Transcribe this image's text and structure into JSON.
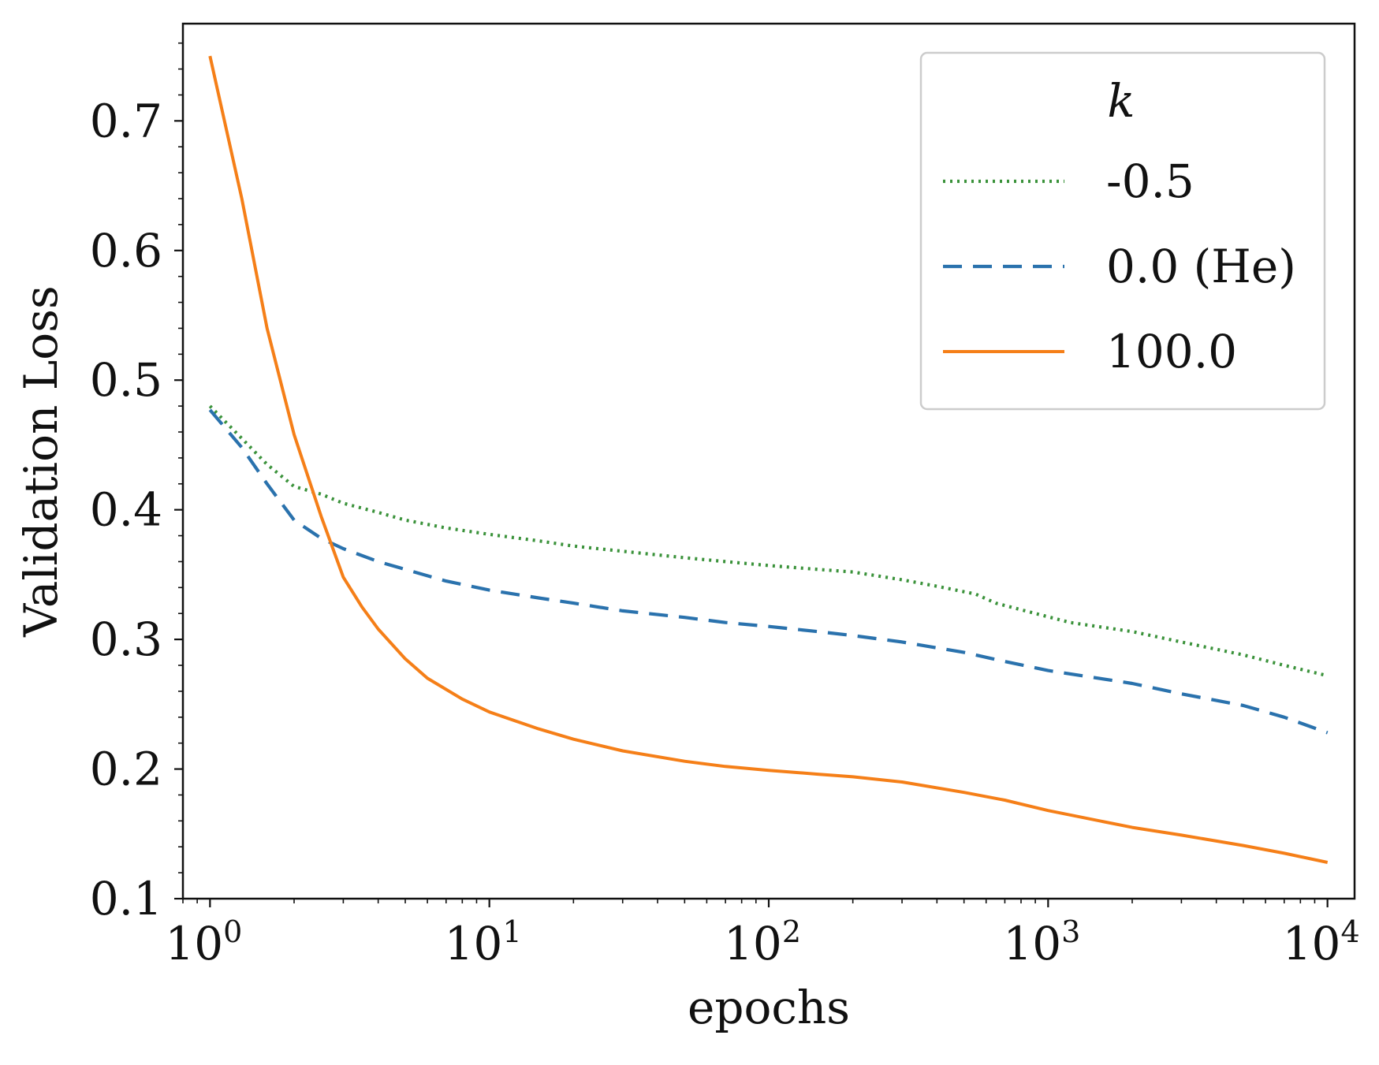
{
  "chart_data": {
    "type": "line",
    "title": "",
    "xlabel": "epochs",
    "ylabel": "Validation Loss",
    "xscale": "log",
    "xlim": [
      0.8,
      12500
    ],
    "ylim": [
      0.1,
      0.775
    ],
    "xticks": [
      {
        "value": 1,
        "base": "10",
        "exp": "0"
      },
      {
        "value": 10,
        "base": "10",
        "exp": "1"
      },
      {
        "value": 100,
        "base": "10",
        "exp": "2"
      },
      {
        "value": 1000,
        "base": "10",
        "exp": "3"
      },
      {
        "value": 10000,
        "base": "10",
        "exp": "4"
      }
    ],
    "yticks": [
      {
        "value": 0.1,
        "label": "0.1"
      },
      {
        "value": 0.2,
        "label": "0.2"
      },
      {
        "value": 0.3,
        "label": "0.3"
      },
      {
        "value": 0.4,
        "label": "0.4"
      },
      {
        "value": 0.5,
        "label": "0.5"
      },
      {
        "value": 0.6,
        "label": "0.6"
      },
      {
        "value": 0.7,
        "label": "0.7"
      }
    ],
    "grid": false,
    "legend": {
      "title": "k",
      "placement": "top-right"
    },
    "series": [
      {
        "name": "-0.5",
        "color": "#3a923a",
        "style": "dotted",
        "points": [
          [
            1,
            0.48
          ],
          [
            1.3,
            0.455
          ],
          [
            1.6,
            0.435
          ],
          [
            2,
            0.418
          ],
          [
            2.5,
            0.412
          ],
          [
            3,
            0.405
          ],
          [
            4,
            0.398
          ],
          [
            5,
            0.392
          ],
          [
            7,
            0.386
          ],
          [
            10,
            0.381
          ],
          [
            15,
            0.376
          ],
          [
            20,
            0.372
          ],
          [
            30,
            0.368
          ],
          [
            50,
            0.363
          ],
          [
            70,
            0.36
          ],
          [
            100,
            0.357
          ],
          [
            150,
            0.354
          ],
          [
            200,
            0.352
          ],
          [
            300,
            0.346
          ],
          [
            400,
            0.341
          ],
          [
            550,
            0.335
          ],
          [
            650,
            0.328
          ],
          [
            900,
            0.32
          ],
          [
            1200,
            0.313
          ],
          [
            2000,
            0.306
          ],
          [
            3000,
            0.298
          ],
          [
            5000,
            0.288
          ],
          [
            7000,
            0.28
          ],
          [
            10000,
            0.272
          ]
        ]
      },
      {
        "name": "0.0 (He)",
        "color": "#2a72ad",
        "style": "dashed",
        "points": [
          [
            1,
            0.477
          ],
          [
            1.3,
            0.448
          ],
          [
            1.6,
            0.42
          ],
          [
            2,
            0.392
          ],
          [
            2.5,
            0.378
          ],
          [
            3,
            0.37
          ],
          [
            4,
            0.36
          ],
          [
            5,
            0.354
          ],
          [
            7,
            0.345
          ],
          [
            10,
            0.338
          ],
          [
            15,
            0.332
          ],
          [
            20,
            0.328
          ],
          [
            30,
            0.322
          ],
          [
            50,
            0.317
          ],
          [
            70,
            0.313
          ],
          [
            100,
            0.31
          ],
          [
            150,
            0.306
          ],
          [
            200,
            0.303
          ],
          [
            300,
            0.298
          ],
          [
            500,
            0.29
          ],
          [
            700,
            0.283
          ],
          [
            1000,
            0.276
          ],
          [
            2000,
            0.266
          ],
          [
            3000,
            0.258
          ],
          [
            5000,
            0.249
          ],
          [
            7000,
            0.24
          ],
          [
            10000,
            0.228
          ]
        ]
      },
      {
        "name": "100.0",
        "color": "#f57f18",
        "style": "solid",
        "points": [
          [
            1,
            0.75
          ],
          [
            1.3,
            0.64
          ],
          [
            1.6,
            0.54
          ],
          [
            2,
            0.458
          ],
          [
            2.5,
            0.395
          ],
          [
            3,
            0.348
          ],
          [
            3.5,
            0.325
          ],
          [
            4,
            0.308
          ],
          [
            5,
            0.285
          ],
          [
            6,
            0.27
          ],
          [
            8,
            0.254
          ],
          [
            10,
            0.244
          ],
          [
            15,
            0.231
          ],
          [
            20,
            0.223
          ],
          [
            30,
            0.214
          ],
          [
            50,
            0.206
          ],
          [
            70,
            0.202
          ],
          [
            100,
            0.199
          ],
          [
            150,
            0.196
          ],
          [
            200,
            0.194
          ],
          [
            300,
            0.19
          ],
          [
            500,
            0.182
          ],
          [
            700,
            0.176
          ],
          [
            1000,
            0.168
          ],
          [
            2000,
            0.155
          ],
          [
            3000,
            0.149
          ],
          [
            5000,
            0.141
          ],
          [
            7000,
            0.135
          ],
          [
            10000,
            0.128
          ]
        ]
      }
    ]
  }
}
